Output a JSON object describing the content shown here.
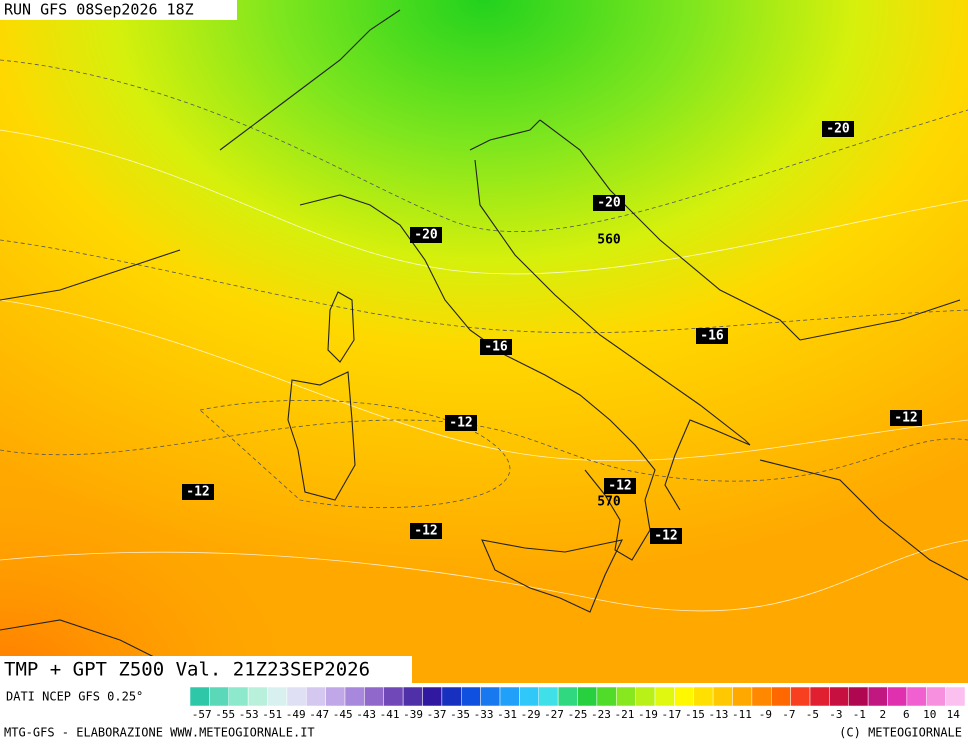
{
  "header": {
    "run": "RUN GFS 08Sep2026 18Z"
  },
  "map": {
    "labels": [
      "-20",
      "-20",
      "560",
      "-20",
      "-16",
      "-16",
      "-12",
      "-12",
      "-12",
      "-12",
      "570",
      "-12",
      "-12"
    ]
  },
  "footer": {
    "title": "TMP + GPT Z500 Val. 21Z23SEP2026",
    "source": "DATI NCEP GFS 0.25°",
    "credit": "MTG-GFS - ELABORAZIONE WWW.METEOGIORNALE.IT",
    "copyright": "(C) METEOGIORNALE"
  },
  "colorbar": {
    "labels": [
      "-57",
      "-55",
      "-53",
      "-51",
      "-49",
      "-47",
      "-45",
      "-43",
      "-41",
      "-39",
      "-37",
      "-35",
      "-33",
      "-31",
      "-29",
      "-27",
      "-25",
      "-23",
      "-21",
      "-19",
      "-17",
      "-15",
      "-13",
      "-11",
      "-9",
      "-7",
      "-5",
      "-3",
      "-1",
      "2",
      "6",
      "10",
      "14"
    ]
  }
}
